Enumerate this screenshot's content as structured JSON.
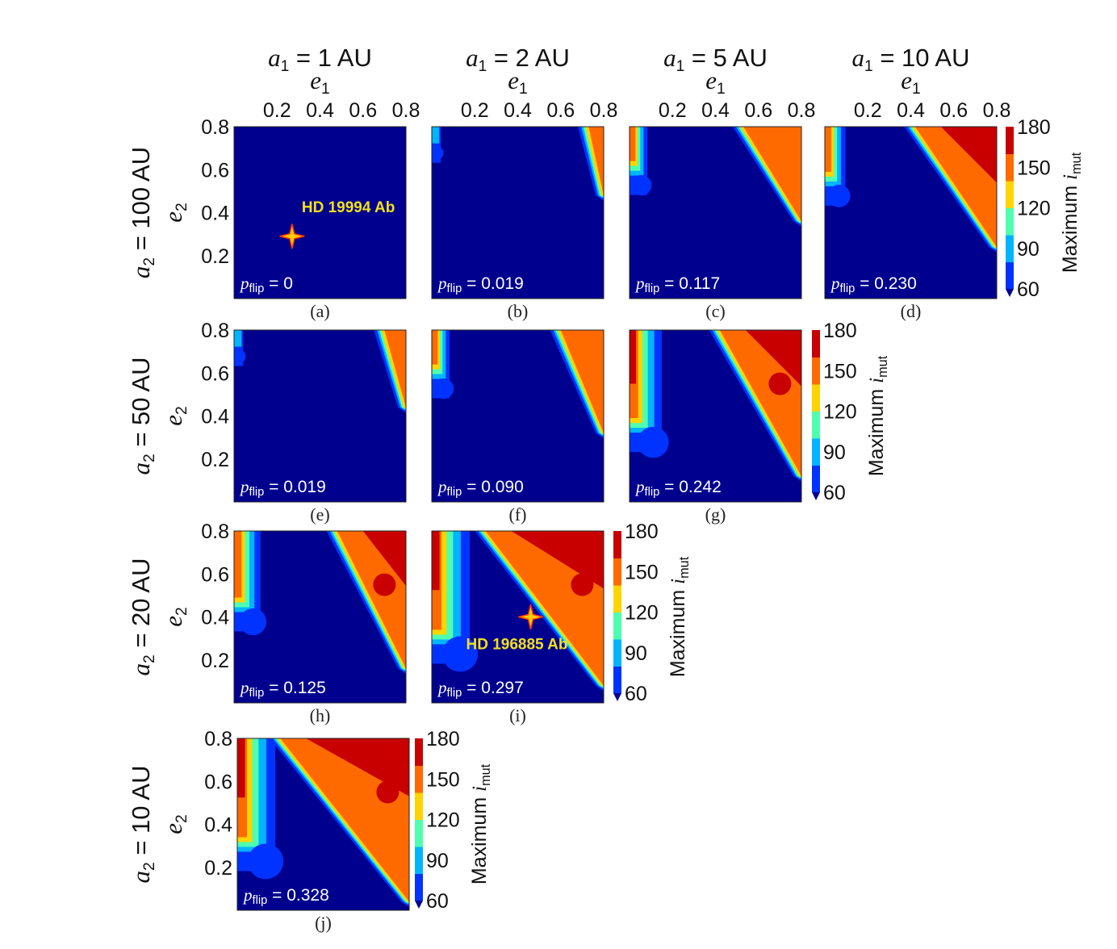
{
  "chart_data": {
    "type": "heatmap",
    "column_titles": [
      {
        "var": "a",
        "sub": "1",
        "rest": " = 1 AU"
      },
      {
        "var": "a",
        "sub": "1",
        "rest": " = 2 AU"
      },
      {
        "var": "a",
        "sub": "1",
        "rest": " = 5 AU"
      },
      {
        "var": "a",
        "sub": "1",
        "rest": " = 10 AU"
      }
    ],
    "row_titles": [
      {
        "var": "a",
        "sub": "2",
        "rest": " = 100 AU"
      },
      {
        "var": "a",
        "sub": "2",
        "rest": " = 50 AU"
      },
      {
        "var": "a",
        "sub": "2",
        "rest": " = 20 AU"
      },
      {
        "var": "a",
        "sub": "2",
        "rest": " = 10 AU"
      }
    ],
    "xlabel": {
      "var": "e",
      "sub": "1"
    },
    "ylabel": {
      "var": "e",
      "sub": "2"
    },
    "x_ticks": [
      "0.2",
      "0.4",
      "0.6",
      "0.8"
    ],
    "y_ticks": [
      "0.8",
      "0.6",
      "0.4",
      "0.2"
    ],
    "xlim": [
      0,
      0.8
    ],
    "ylim": [
      0,
      0.8
    ],
    "colorbar": {
      "label_main": "Maximum ",
      "label_var": "i",
      "label_sub": "mut",
      "ticks": [
        "180",
        "150",
        "120",
        "90",
        "60"
      ],
      "range": [
        60,
        180
      ],
      "colors": [
        "#00008f",
        "#0033ff",
        "#00b4ff",
        "#4fffb0",
        "#ffd400",
        "#ff6a00",
        "#c80000"
      ]
    },
    "pflip_label": {
      "var": "p",
      "sub": "flip"
    },
    "panels": [
      {
        "id": "a",
        "caption": "(a)",
        "pflip": "= 0",
        "left_strip": 0,
        "right_front": null,
        "star": {
          "e1": 0.27,
          "e2": 0.29,
          "label": "HD 19994 Ab"
        }
      },
      {
        "id": "b",
        "caption": "(b)",
        "pflip": "= 0.019",
        "left_strip": 0.02,
        "right_front": [
          0.73,
          0.78,
          0.4
        ]
      },
      {
        "id": "c",
        "caption": "(c)",
        "pflip": "= 0.117",
        "left_strip": 0.05,
        "right_front": [
          0.53,
          0.78,
          0.55
        ]
      },
      {
        "id": "d",
        "caption": "(d)",
        "pflip": "= 0.230",
        "left_strip": 0.06,
        "right_front": [
          0.42,
          0.78,
          0.7
        ]
      },
      {
        "id": "e",
        "caption": "(e)",
        "pflip": "= 0.019",
        "left_strip": 0.02,
        "right_front": [
          0.7,
          0.78,
          0.45
        ]
      },
      {
        "id": "f",
        "caption": "(f)",
        "pflip": "= 0.090",
        "left_strip": 0.05,
        "right_front": [
          0.6,
          0.78,
          0.6
        ]
      },
      {
        "id": "g",
        "caption": "(g)",
        "pflip": "= 0.242",
        "left_strip": 0.1,
        "right_front": [
          0.42,
          0.78,
          0.85
        ]
      },
      {
        "id": "h",
        "caption": "(h)",
        "pflip": "= 0.125",
        "left_strip": 0.08,
        "right_front": [
          0.48,
          0.78,
          0.8
        ]
      },
      {
        "id": "i",
        "caption": "(i)",
        "pflip": "= 0.297",
        "left_strip": 0.12,
        "right_front": [
          0.25,
          0.78,
          0.9
        ],
        "star": {
          "e1": 0.46,
          "e2": 0.4,
          "label": "HD 196885 Ab"
        }
      },
      {
        "id": "j",
        "caption": "(j)",
        "pflip": "= 0.328",
        "left_strip": 0.12,
        "right_front": [
          0.2,
          0.78,
          0.95
        ]
      }
    ]
  }
}
